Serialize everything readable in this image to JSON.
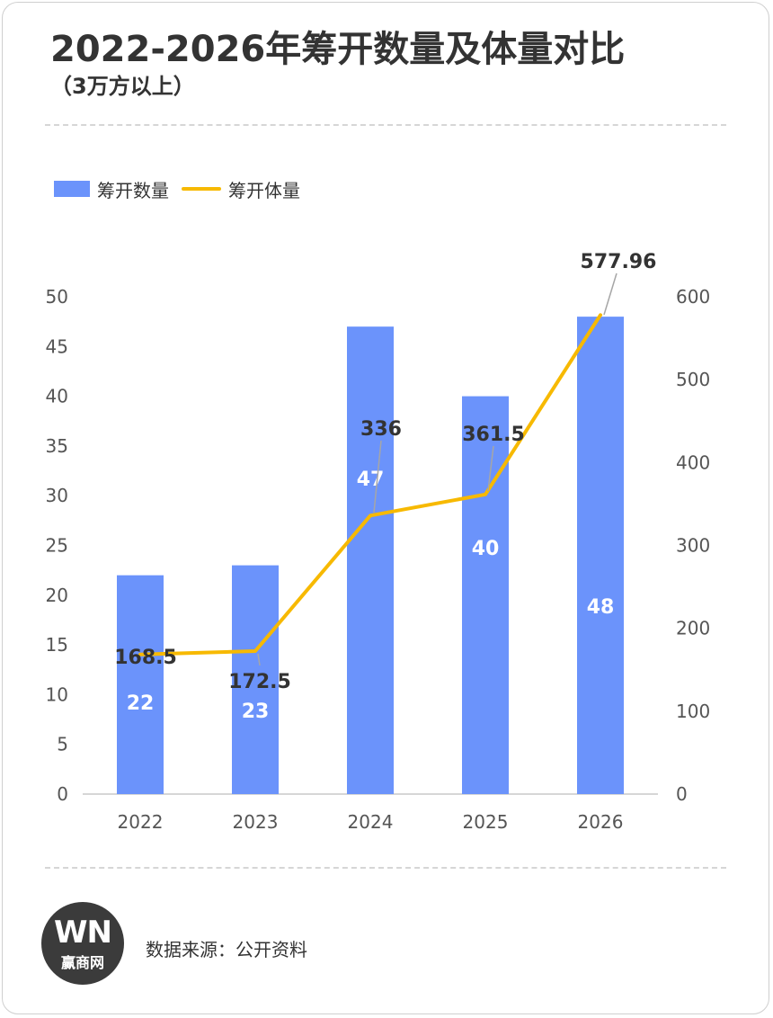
{
  "title": "2022-2026年筹开数量及体量对比",
  "subtitle": "（3万方以上）",
  "legend": {
    "bar_label": "筹开数量",
    "line_label": "筹开体量"
  },
  "colors": {
    "bar": "#6b93fb",
    "line": "#f7b900",
    "text": "#333333",
    "axis": "#555555",
    "bar_label": "#ffffff",
    "line_label": "#333333"
  },
  "chart_data": {
    "type": "bar",
    "categories": [
      "2022",
      "2023",
      "2024",
      "2025",
      "2026"
    ],
    "series": [
      {
        "name": "筹开数量",
        "type": "bar",
        "axis": "left",
        "values": [
          22,
          23,
          47,
          40,
          48
        ]
      },
      {
        "name": "筹开体量",
        "type": "line",
        "axis": "right",
        "values": [
          168.5,
          172.5,
          336,
          361.5,
          577.96
        ]
      }
    ],
    "value_labels": {
      "bar": [
        "22",
        "23",
        "47",
        "40",
        "48"
      ],
      "line": [
        "168.5",
        "172.5",
        "336",
        "361.5",
        "577.96"
      ]
    },
    "left_axis": {
      "ylim": [
        0,
        50
      ],
      "ticks": [
        "0",
        "5",
        "10",
        "15",
        "20",
        "25",
        "30",
        "35",
        "40",
        "45",
        "50"
      ]
    },
    "right_axis": {
      "ylim": [
        0,
        600
      ],
      "ticks": [
        "0",
        "100",
        "200",
        "300",
        "400",
        "500",
        "600"
      ]
    },
    "grid": false,
    "legend_position": "top-left"
  },
  "footer": {
    "logo_mark": "WN",
    "logo_text": "赢商网",
    "source": "数据来源：公开资料"
  }
}
